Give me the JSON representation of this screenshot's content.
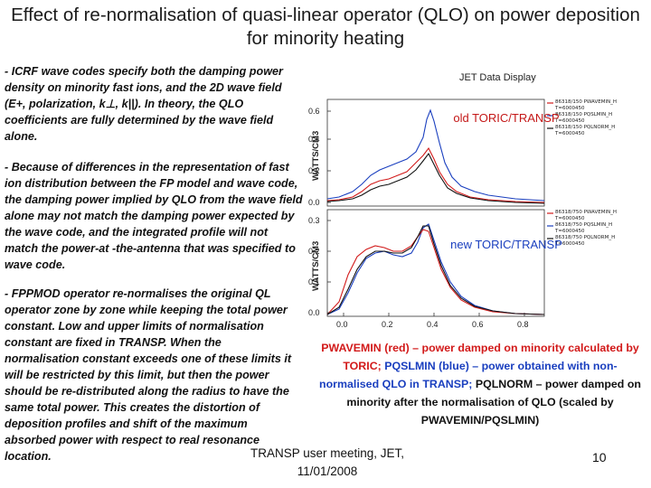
{
  "slide": {
    "title": "Effect of re-normalisation of quasi-linear operator (QLO) on power deposition for minority heating",
    "bullets": [
      "- ICRF wave codes specify both the damping power density on minority fast ions, and the 2D wave field (E+, polarization, k⊥, k||). In theory, the QLO coefficients are fully determined by the wave field alone.",
      "- Because of differences in the representation of fast ion distribution between the FP model and wave code, the damping power implied by QLO from the wave field alone may not match the damping power expected by the wave code, and the integrated profile will not match the power-at -the-antenna that was specified to wave code.",
      "- FPPMOD operator re-normalises the original QL operator zone by zone while keeping the total power constant. Low and upper limits of normalisation constant are fixed in TRANSP. When the normalisation constant exceeds one of these limits it will be restricted by this limit, but then the power should be re-distributed along the radius to have the same total power. This creates the distortion of deposition profiles and shift of the maximum absorbed power with respect to real resonance location."
    ],
    "caption": {
      "part1": "PWAVEMIN (red) – power damped on minority calculated by TORIC; ",
      "part2": "PQSLMIN (blue) – power obtained with non-normalised QLO in TRANSP;",
      "part3": " PQLNORM – power damped on minority after the normalisation of QLO (scaled by PWAVEMIN/PQSLMIN)"
    },
    "footer": "TRANSP user meeting, JET, 11/01/2008",
    "page_number": "10"
  },
  "figure": {
    "header": "JET Data Display",
    "panel_top_label": "old TORIC/TRANSP",
    "panel_bottom_label": "new TORIC/TRANSP",
    "ylabel": "WATTS/CM3",
    "top_yticks": [
      "0.6",
      "0.4",
      "0.2",
      "0.0"
    ],
    "bottom_yticks": [
      "0.3",
      "0.2",
      "0.1",
      "0.0"
    ],
    "xticks": [
      "0.0",
      "0.2",
      "0.4",
      "0.6",
      "0.8"
    ],
    "legend_top": [
      "86318/150 PWAVEMIN_H",
      "T=6000450",
      "86318/150 PQSLMIN_H",
      "T=6000450",
      "86318/150 PQLNORM_H",
      "T=6000450"
    ],
    "legend_bottom": [
      "86318/750 PWAVEMIN_H",
      "T=6000450",
      "86318/750 PQSLMIN_H",
      "T=6000450",
      "86318/750 PQLNORM_H",
      "T=6000450"
    ],
    "colors": {
      "red": "#d21a1a",
      "blue": "#1a3fbf",
      "black": "#111111"
    }
  }
}
